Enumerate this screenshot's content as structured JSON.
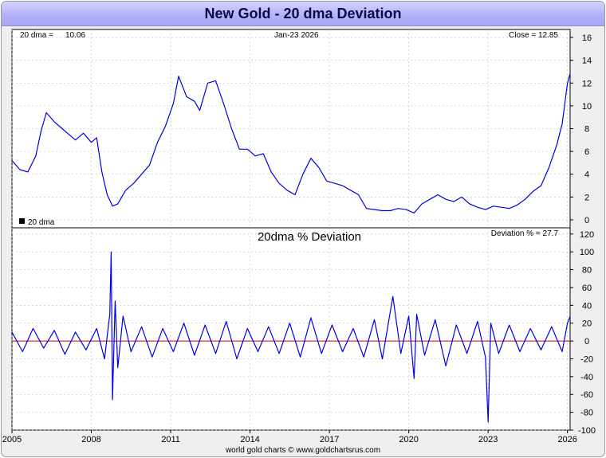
{
  "title": "New Gold - 20 dma Deviation",
  "footer": "world gold charts © www.goldchartsrus.com",
  "colors": {
    "line": "#0000e6",
    "zero_line": "#cc0000",
    "grid": "#bdbdbd",
    "title_text": "#0a0a4a"
  },
  "chart_data": [
    {
      "type": "line",
      "title": "",
      "info": {
        "dma_label": "20 dma =",
        "dma_value": "10.06",
        "date": "Jan-23  2026",
        "close": "Close = 12.85"
      },
      "legend": "20 dma",
      "ylim": [
        -0.7,
        16.7
      ],
      "y_ticks": [
        16,
        14,
        12,
        10,
        8,
        6,
        4,
        2,
        0
      ],
      "xlim": [
        2005.0,
        2026.1
      ],
      "x_ticks": [
        "2005",
        "2008",
        "2011",
        "2014",
        "2017",
        "2020",
        "2023",
        "2026"
      ],
      "x_tick_values": [
        2005,
        2008,
        2011,
        2014,
        2017,
        2020,
        2023,
        2026
      ],
      "series": [
        {
          "name": "20 dma",
          "x": [
            2005.0,
            2005.3,
            2005.6,
            2005.9,
            2006.1,
            2006.3,
            2006.6,
            2006.9,
            2007.2,
            2007.4,
            2007.7,
            2008.0,
            2008.2,
            2008.4,
            2008.6,
            2008.8,
            2009.0,
            2009.3,
            2009.6,
            2009.9,
            2010.2,
            2010.5,
            2010.8,
            2011.1,
            2011.3,
            2011.6,
            2011.9,
            2012.1,
            2012.4,
            2012.7,
            2013.0,
            2013.3,
            2013.6,
            2013.9,
            2014.2,
            2014.5,
            2014.8,
            2015.1,
            2015.4,
            2015.7,
            2016.0,
            2016.3,
            2016.6,
            2016.9,
            2017.2,
            2017.5,
            2017.8,
            2018.1,
            2018.4,
            2018.7,
            2019.0,
            2019.3,
            2019.6,
            2019.9,
            2020.2,
            2020.5,
            2020.8,
            2021.1,
            2021.4,
            2021.7,
            2022.0,
            2022.3,
            2022.6,
            2022.9,
            2023.2,
            2023.5,
            2023.8,
            2024.1,
            2024.4,
            2024.7,
            2025.0,
            2025.3,
            2025.6,
            2025.8,
            2026.0,
            2026.1
          ],
          "values": [
            5.2,
            4.4,
            4.2,
            5.6,
            7.8,
            9.4,
            8.6,
            8.0,
            7.4,
            7.0,
            7.6,
            6.8,
            7.2,
            4.2,
            2.2,
            1.2,
            1.4,
            2.6,
            3.2,
            4.0,
            4.8,
            6.8,
            8.2,
            10.2,
            12.6,
            10.8,
            10.4,
            9.6,
            12.0,
            12.2,
            10.2,
            8.0,
            6.2,
            6.2,
            5.6,
            5.8,
            4.2,
            3.2,
            2.6,
            2.2,
            4.0,
            5.4,
            4.6,
            3.4,
            3.2,
            3.0,
            2.6,
            2.2,
            1.0,
            0.9,
            0.8,
            0.8,
            1.0,
            0.9,
            0.6,
            1.4,
            1.8,
            2.2,
            1.8,
            1.6,
            2.0,
            1.4,
            1.1,
            0.9,
            1.2,
            1.1,
            1.0,
            1.3,
            1.8,
            2.5,
            3.0,
            4.6,
            6.6,
            8.4,
            12.0,
            12.85
          ]
        }
      ]
    },
    {
      "type": "line",
      "title": "20dma  %  Deviation",
      "info": {
        "deviation": "Deviation % = 27.7"
      },
      "ylim": [
        -100,
        127
      ],
      "y_ticks": [
        120,
        100,
        80,
        60,
        40,
        20,
        0,
        -20,
        -40,
        -60,
        -80,
        -100
      ],
      "zero_line": 0,
      "xlim": [
        2005.0,
        2026.1
      ],
      "series": [
        {
          "name": "20dma % Deviation",
          "x": [
            2005.0,
            2005.4,
            2005.8,
            2006.2,
            2006.6,
            2007.0,
            2007.4,
            2007.8,
            2008.2,
            2008.5,
            2008.7,
            2008.75,
            2008.8,
            2008.9,
            2009.0,
            2009.2,
            2009.5,
            2009.9,
            2010.3,
            2010.7,
            2011.1,
            2011.5,
            2011.9,
            2012.3,
            2012.7,
            2013.1,
            2013.5,
            2013.9,
            2014.3,
            2014.7,
            2015.1,
            2015.5,
            2015.9,
            2016.3,
            2016.7,
            2017.1,
            2017.5,
            2017.9,
            2018.3,
            2018.7,
            2019.0,
            2019.4,
            2019.7,
            2020.0,
            2020.2,
            2020.3,
            2020.6,
            2021.0,
            2021.4,
            2021.8,
            2022.2,
            2022.6,
            2022.9,
            2023.0,
            2023.1,
            2023.4,
            2023.8,
            2024.2,
            2024.6,
            2025.0,
            2025.4,
            2025.8,
            2026.0,
            2026.1
          ],
          "values": [
            10,
            -12,
            14,
            -8,
            12,
            -15,
            10,
            -10,
            14,
            -20,
            30,
            100,
            -66,
            45,
            -30,
            28,
            -12,
            16,
            -18,
            14,
            -12,
            20,
            -16,
            18,
            -14,
            22,
            -20,
            14,
            -12,
            16,
            -14,
            20,
            -18,
            26,
            -14,
            18,
            -12,
            14,
            -18,
            24,
            -20,
            50,
            -14,
            28,
            -42,
            30,
            -16,
            24,
            -28,
            18,
            -14,
            22,
            -18,
            -91,
            20,
            -14,
            18,
            -12,
            14,
            -10,
            16,
            -12,
            20,
            27.7
          ]
        }
      ]
    }
  ]
}
